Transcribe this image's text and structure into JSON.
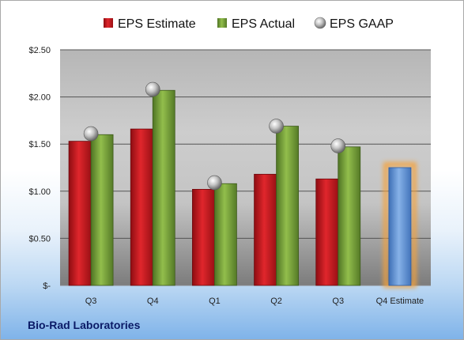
{
  "chart_data": {
    "type": "bar",
    "categories": [
      "Q3",
      "Q4",
      "Q1",
      "Q2",
      "Q3",
      "Q4 Estimate"
    ],
    "series": [
      {
        "name": "EPS Estimate",
        "values": [
          1.53,
          1.66,
          1.02,
          1.18,
          1.13,
          null
        ],
        "color": "#c0181e"
      },
      {
        "name": "EPS Actual",
        "values": [
          1.6,
          2.07,
          1.08,
          1.69,
          1.47,
          null
        ],
        "color": "#76a038"
      },
      {
        "name": "EPS GAAP",
        "values": [
          1.61,
          2.08,
          1.09,
          1.69,
          1.48,
          null
        ],
        "color": "#a8a8a8",
        "marker": "circle"
      }
    ],
    "forecast": {
      "category": "Q4 Estimate",
      "value": 1.25,
      "color": "#5b8fd2",
      "glow": "#f5a23a"
    },
    "ylim": [
      0,
      2.5
    ],
    "yticks": [
      {
        "value": 0,
        "label": "$-"
      },
      {
        "value": 0.5,
        "label": "$0.50"
      },
      {
        "value": 1.0,
        "label": "$1.00"
      },
      {
        "value": 1.5,
        "label": "$1.50"
      },
      {
        "value": 2.0,
        "label": "$2.00"
      },
      {
        "value": 2.5,
        "label": "$2.50"
      }
    ],
    "legend_position": "top",
    "grid": true
  },
  "footer": {
    "company": "Bio-Rad Laboratories"
  }
}
